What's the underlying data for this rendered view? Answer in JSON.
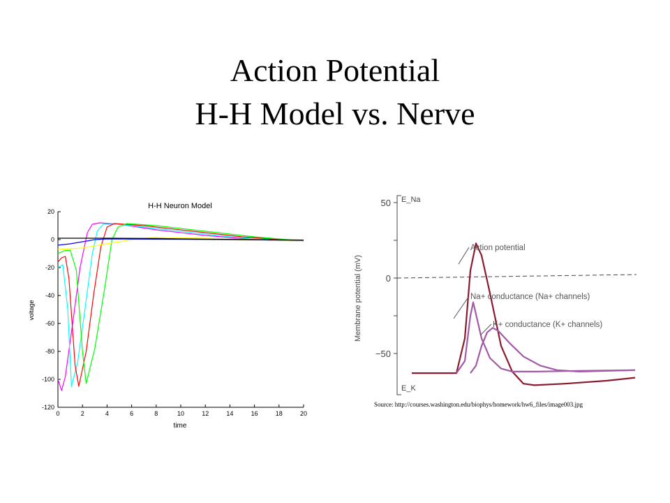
{
  "slide": {
    "title_line1": "Action Potential",
    "title_line2": "H-H Model vs. Nerve",
    "source": "Source: http://courses.washington.edu/biophys/homework/hw6_files/image003.jpg"
  },
  "chart_data": [
    {
      "type": "line",
      "title": "H-H Neuron Model",
      "xlabel": "time",
      "ylabel": "voltage",
      "xlim": [
        0,
        20
      ],
      "ylim": [
        -120,
        20
      ],
      "xticks": [
        0,
        2,
        4,
        6,
        8,
        10,
        12,
        14,
        16,
        18,
        20
      ],
      "yticks": [
        20,
        0,
        -20,
        -40,
        -60,
        -80,
        -100,
        -120
      ],
      "grid": false,
      "series": [
        {
          "color": "#ff00ff",
          "points": [
            [
              0,
              -100
            ],
            [
              0.3,
              -108
            ],
            [
              0.6,
              -98
            ],
            [
              1.2,
              -60
            ],
            [
              1.8,
              -20
            ],
            [
              2.4,
              5
            ],
            [
              2.8,
              11
            ],
            [
              3.4,
              12
            ],
            [
              5,
              11
            ],
            [
              8,
              7
            ],
            [
              12,
              3
            ],
            [
              16,
              0
            ],
            [
              20,
              -1
            ]
          ]
        },
        {
          "color": "#00ffff",
          "points": [
            [
              0,
              -20
            ],
            [
              0.4,
              -18
            ],
            [
              0.8,
              -50
            ],
            [
              1.1,
              -105
            ],
            [
              1.6,
              -88
            ],
            [
              2.2,
              -50
            ],
            [
              2.8,
              -10
            ],
            [
              3.2,
              6
            ],
            [
              3.7,
              11
            ],
            [
              5,
              11
            ],
            [
              9,
              7
            ],
            [
              14,
              2
            ],
            [
              20,
              -1
            ]
          ]
        },
        {
          "color": "#ff0000",
          "points": [
            [
              0,
              -16
            ],
            [
              0.3,
              -13
            ],
            [
              0.6,
              -12
            ],
            [
              0.9,
              -28
            ],
            [
              1.4,
              -90
            ],
            [
              1.7,
              -105
            ],
            [
              2.3,
              -80
            ],
            [
              2.9,
              -40
            ],
            [
              3.5,
              -5
            ],
            [
              4.0,
              9
            ],
            [
              4.6,
              11.5
            ],
            [
              7,
              10
            ],
            [
              11,
              6
            ],
            [
              15,
              2
            ],
            [
              20,
              -1
            ]
          ]
        },
        {
          "color": "#00ff00",
          "points": [
            [
              0,
              -10
            ],
            [
              0.5,
              -8
            ],
            [
              1.0,
              -7.5
            ],
            [
              1.5,
              -22
            ],
            [
              2.0,
              -80
            ],
            [
              2.3,
              -103
            ],
            [
              3.0,
              -78
            ],
            [
              3.8,
              -35
            ],
            [
              4.4,
              0
            ],
            [
              4.9,
              9
            ],
            [
              5.6,
              11.5
            ],
            [
              8,
              10
            ],
            [
              12,
              6
            ],
            [
              16,
              2
            ],
            [
              20,
              -1
            ]
          ]
        },
        {
          "color": "#ffff00",
          "points": [
            [
              0,
              -7
            ],
            [
              2,
              -6
            ],
            [
              4,
              -3
            ],
            [
              6,
              0
            ],
            [
              8,
              1.5
            ],
            [
              12,
              1
            ],
            [
              16,
              0
            ],
            [
              20,
              -1
            ]
          ]
        },
        {
          "color": "#0000ff",
          "points": [
            [
              0,
              -4
            ],
            [
              1,
              -3
            ],
            [
              2,
              -1.5
            ],
            [
              3,
              0
            ],
            [
              4,
              0.5
            ],
            [
              8,
              0.3
            ],
            [
              14,
              0
            ],
            [
              20,
              -0.5
            ]
          ]
        },
        {
          "color": "#000000",
          "points": [
            [
              0,
              1
            ],
            [
              4,
              1
            ],
            [
              8,
              0.8
            ],
            [
              12,
              0.3
            ],
            [
              16,
              0
            ],
            [
              20,
              -0.3
            ]
          ]
        }
      ]
    },
    {
      "type": "line",
      "title": "",
      "ylabel": "Membrane potential (mV)",
      "yticks": [
        50,
        0,
        -50
      ],
      "y_markers": [
        "E_Na",
        "E_K"
      ],
      "annotations": [
        "Action potential",
        "Na+ conductance (Na+ channels)",
        "K+ conductance (K+ channels)"
      ],
      "series": [
        {
          "name": "Action potential",
          "color": "#8b1a2e",
          "points": [
            [
              0,
              -63
            ],
            [
              16,
              -63
            ],
            [
              19,
              -40
            ],
            [
              21,
              5
            ],
            [
              23,
              23
            ],
            [
              25,
              15
            ],
            [
              28,
              -10
            ],
            [
              32,
              -45
            ],
            [
              36,
              -62
            ],
            [
              40,
              -70
            ],
            [
              44,
              -71
            ],
            [
              55,
              -70
            ],
            [
              70,
              -68
            ],
            [
              80,
              -66
            ]
          ]
        },
        {
          "name": "Na+ conductance (Na+ channels)",
          "color": "#a25aa6",
          "points": [
            [
              16,
              -63
            ],
            [
              19,
              -55
            ],
            [
              21,
              -25
            ],
            [
              22,
              -16
            ],
            [
              23,
              -24
            ],
            [
              25,
              -40
            ],
            [
              28,
              -53
            ],
            [
              32,
              -60
            ],
            [
              36,
              -62
            ],
            [
              45,
              -62
            ],
            [
              60,
              -61.5
            ],
            [
              80,
              -61
            ]
          ]
        },
        {
          "name": "K+ conductance (K+ channels)",
          "color": "#a25aa6",
          "points": [
            [
              21,
              -63
            ],
            [
              23,
              -58
            ],
            [
              25,
              -45
            ],
            [
              27,
              -36
            ],
            [
              29,
              -33
            ],
            [
              31,
              -35
            ],
            [
              35,
              -43
            ],
            [
              40,
              -52
            ],
            [
              46,
              -58
            ],
            [
              52,
              -61
            ],
            [
              60,
              -62
            ],
            [
              80,
              -61
            ]
          ]
        }
      ]
    }
  ]
}
